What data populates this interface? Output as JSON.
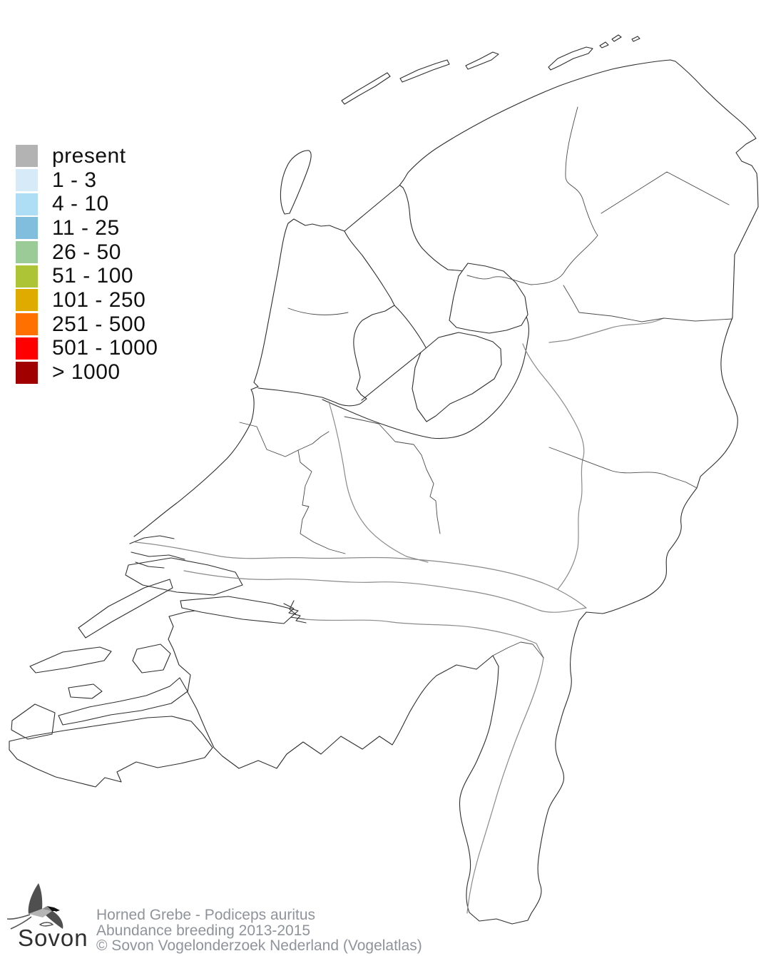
{
  "map": {
    "name": "Netherlands outline map",
    "region": "Netherlands",
    "line_color": "#2e2e2e",
    "river_color": "#8a8a8a",
    "background": "#ffffff"
  },
  "legend": {
    "items": [
      {
        "label": "present",
        "color": "#b3b3b3"
      },
      {
        "label": "1 - 3",
        "color": "#d6eaf8"
      },
      {
        "label": "4 - 10",
        "color": "#aeddf6"
      },
      {
        "label": "11 - 25",
        "color": "#81bedd"
      },
      {
        "label": "26 - 50",
        "color": "#9bcb97"
      },
      {
        "label": "51 - 100",
        "color": "#aec437"
      },
      {
        "label": "101 - 250",
        "color": "#dfab00"
      },
      {
        "label": "251 - 500",
        "color": "#ff7000"
      },
      {
        "label": "501 - 1000",
        "color": "#fe0000"
      },
      {
        "label": "> 1000",
        "color": "#a00000"
      }
    ]
  },
  "footer": {
    "line1": "Horned Grebe - Podiceps auritus",
    "line2": "Abundance breeding 2013-2015",
    "line3": "© Sovon Vogelonderzoek Nederland (Vogelatlas)",
    "logo_text": "Sovon"
  }
}
